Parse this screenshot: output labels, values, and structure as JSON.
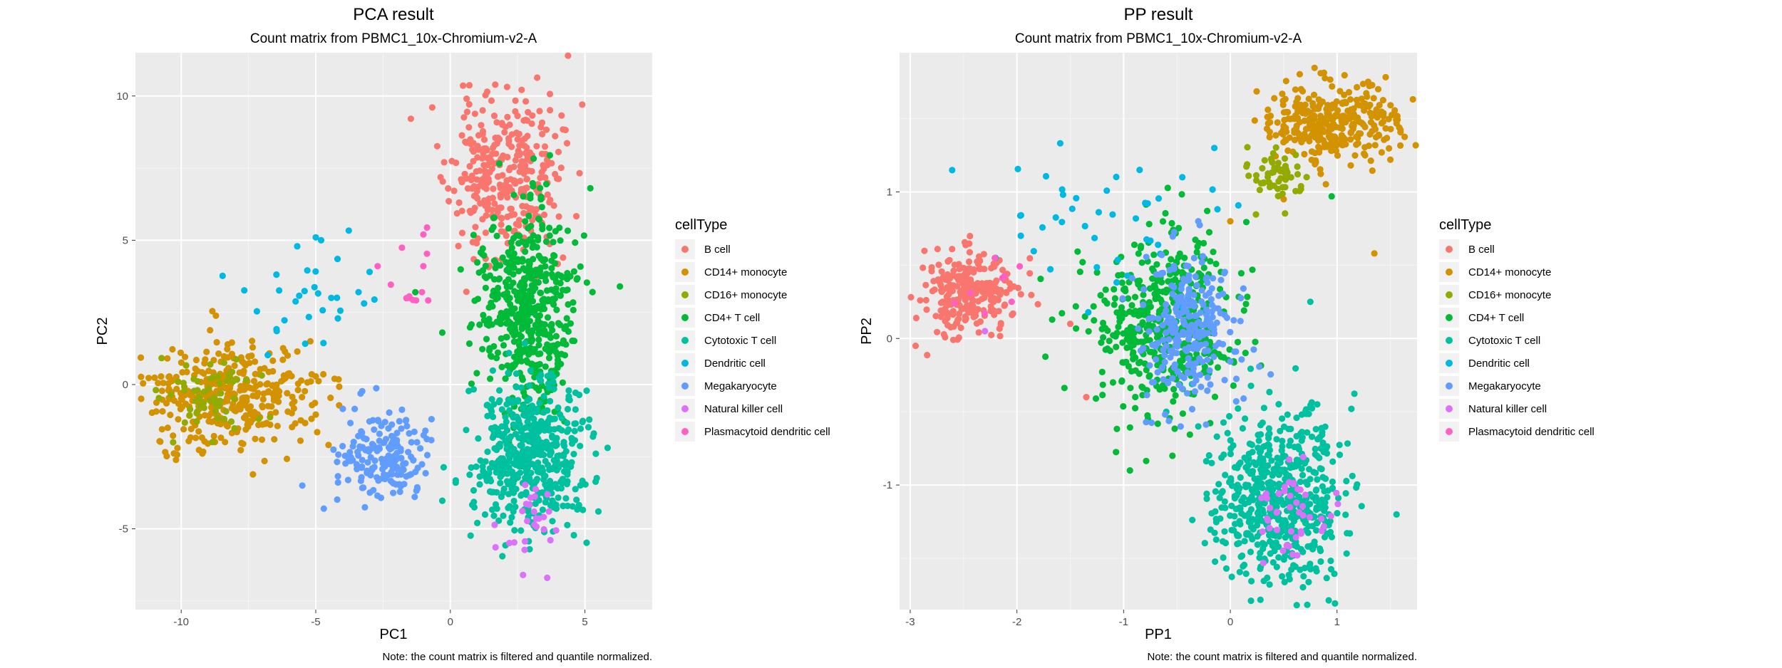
{
  "colors": {
    "B cell": "#F8766D",
    "CD14+ monocyte": "#D39200",
    "CD16+ monocyte": "#93AA00",
    "CD4+ T cell": "#00BA38",
    "Cytotoxic T cell": "#00C19F",
    "Dendritic cell": "#00B9E3",
    "Megakaryocyte": "#619CFF",
    "Natural killer cell": "#DB72FB",
    "Plasmacytoid dendritic cell": "#FF61C3"
  },
  "chart_data": [
    {
      "type": "scatter",
      "title": "PCA result",
      "subtitle": "Count matrix from PBMC1_10x-Chromium-v2-A",
      "xlabel": "PC1",
      "ylabel": "PC2",
      "xlim": [
        -11.7,
        7.5
      ],
      "ylim": [
        -7.8,
        11.5
      ],
      "xticks": [
        -10,
        -5,
        0,
        5
      ],
      "yticks": [
        -5,
        0,
        5,
        10
      ],
      "xtick_labels": [
        "-10",
        "-5",
        "0",
        "5"
      ],
      "ytick_labels": [
        "-5",
        "0",
        "5",
        "10"
      ],
      "grid": true,
      "legend_title": "cellType",
      "legend_position": "right",
      "caption": "Note: the count matrix is filtered and quantile normalized.",
      "seed": 11,
      "series": [
        {
          "name": "B cell",
          "n": 330,
          "center": [
            2.0,
            7.2
          ],
          "spread": [
            1.0,
            1.4
          ],
          "points": [
            [
              1.2,
              9.5
            ],
            [
              2.5,
              8.5
            ],
            [
              0.3,
              4.8
            ],
            [
              3.4,
              5.6
            ]
          ]
        },
        {
          "name": "CD14+ monocyte",
          "n": 380,
          "center": [
            -8.2,
            -0.3
          ],
          "spread": [
            1.6,
            0.9
          ],
          "points": [
            [
              -10.5,
              -1.5
            ],
            [
              -5.2,
              1.5
            ],
            [
              -4.3,
              0.2
            ]
          ]
        },
        {
          "name": "CD16+ monocyte",
          "n": 60,
          "center": [
            -8.8,
            -0.3
          ],
          "spread": [
            0.8,
            0.7
          ],
          "points": [
            [
              -10.3,
              -2.0
            ]
          ]
        },
        {
          "name": "CD4+ T cell",
          "n": 520,
          "center": [
            2.8,
            2.6
          ],
          "spread": [
            0.9,
            1.8
          ],
          "points": [
            [
              5.2,
              6.8
            ],
            [
              6.3,
              3.4
            ],
            [
              -1.3,
              3.2
            ],
            [
              -0.3,
              1.8
            ]
          ]
        },
        {
          "name": "Cytotoxic T cell",
          "n": 520,
          "center": [
            3.0,
            -2.4
          ],
          "spread": [
            1.0,
            1.3
          ],
          "points": [
            [
              0.2,
              -3.4
            ],
            [
              5.5,
              -4.4
            ],
            [
              1.0,
              -4.8
            ]
          ]
        },
        {
          "name": "Dendritic cell",
          "n": 30,
          "center": [
            -5.0,
            2.8
          ],
          "spread": [
            1.2,
            0.9
          ],
          "points": [
            [
              -5.0,
              5.1
            ],
            [
              -4.8,
              5.0
            ],
            [
              -3.0,
              3.9
            ]
          ]
        },
        {
          "name": "Megakaryocyte",
          "n": 180,
          "center": [
            -2.5,
            -2.5
          ],
          "spread": [
            0.9,
            0.8
          ],
          "points": [
            [
              -4.7,
              -4.3
            ],
            [
              -5.5,
              -3.5
            ],
            [
              -0.7,
              -1.2
            ]
          ]
        },
        {
          "name": "Natural killer cell",
          "n": 25,
          "center": [
            2.8,
            -4.8
          ],
          "spread": [
            0.6,
            0.7
          ],
          "points": [
            [
              2.7,
              -6.6
            ],
            [
              3.6,
              -6.7
            ]
          ]
        },
        {
          "name": "Plasmacytoid dendritic cell",
          "n": 12,
          "center": [
            -1.2,
            3.6
          ],
          "spread": [
            0.6,
            0.8
          ],
          "points": [
            [
              -2.7,
              4.1
            ],
            [
              -1.0,
              5.2
            ]
          ]
        }
      ]
    },
    {
      "type": "scatter",
      "title": "PP result",
      "subtitle": "Count matrix from PBMC1_10x-Chromium-v2-A",
      "xlabel": "PP1",
      "ylabel": "PP2",
      "xlim": [
        -3.1,
        1.75
      ],
      "ylim": [
        -1.85,
        1.95
      ],
      "xticks": [
        -3,
        -2,
        -1,
        0,
        1
      ],
      "yticks": [
        -1,
        0,
        1
      ],
      "xtick_labels": [
        "-3",
        "-2",
        "-1",
        "0",
        "1"
      ],
      "ytick_labels": [
        "-1",
        "0",
        "1"
      ],
      "grid": true,
      "legend_title": "cellType",
      "legend_position": "right",
      "caption": "Note: the count matrix is filtered and quantile normalized.",
      "seed": 29,
      "series": [
        {
          "name": "B cell",
          "n": 250,
          "center": [
            -2.45,
            0.32
          ],
          "spread": [
            0.22,
            0.13
          ],
          "points": [
            [
              -1.35,
              -0.4
            ],
            [
              -1.5,
              0.1
            ],
            [
              -2.95,
              -0.05
            ]
          ]
        },
        {
          "name": "CD14+ monocyte",
          "n": 330,
          "center": [
            0.95,
            1.48
          ],
          "spread": [
            0.3,
            0.14
          ],
          "points": [
            [
              0.0,
              0.8
            ],
            [
              1.5,
              1.22
            ],
            [
              1.35,
              0.58
            ],
            [
              0.5,
              0.95
            ]
          ]
        },
        {
          "name": "CD16+ monocyte",
          "n": 60,
          "center": [
            0.42,
            1.1
          ],
          "spread": [
            0.12,
            0.08
          ],
          "points": []
        },
        {
          "name": "CD4+ T cell",
          "n": 480,
          "center": [
            -0.6,
            0.1
          ],
          "spread": [
            0.35,
            0.3
          ],
          "points": [
            [
              -1.1,
              -0.3
            ],
            [
              -0.25,
              0.65
            ],
            [
              0.95,
              0.97
            ]
          ]
        },
        {
          "name": "Cytotoxic T cell",
          "n": 580,
          "center": [
            0.45,
            -1.1
          ],
          "spread": [
            0.3,
            0.32
          ],
          "points": [
            [
              -0.6,
              -0.5
            ],
            [
              0.75,
              0.25
            ],
            [
              -0.3,
              -0.6
            ]
          ]
        },
        {
          "name": "Dendritic cell",
          "n": 40,
          "center": [
            -1.2,
            0.85
          ],
          "spread": [
            0.55,
            0.25
          ],
          "points": [
            [
              -0.85,
              1.15
            ],
            [
              -0.45,
              1.1
            ],
            [
              -0.15,
              1.3
            ],
            [
              -2.2,
              0.55
            ]
          ]
        },
        {
          "name": "Megakaryocyte",
          "n": 260,
          "center": [
            -0.4,
            0.05
          ],
          "spread": [
            0.22,
            0.28
          ],
          "points": [
            [
              -0.3,
              0.8
            ]
          ]
        },
        {
          "name": "Natural killer cell",
          "n": 45,
          "center": [
            0.6,
            -1.25
          ],
          "spread": [
            0.2,
            0.2
          ],
          "points": [
            [
              -2.3,
              0.05
            ]
          ]
        },
        {
          "name": "Plasmacytoid dendritic cell",
          "n": 8,
          "center": [
            -2.2,
            0.35
          ],
          "spread": [
            0.15,
            0.12
          ],
          "points": []
        }
      ]
    }
  ]
}
